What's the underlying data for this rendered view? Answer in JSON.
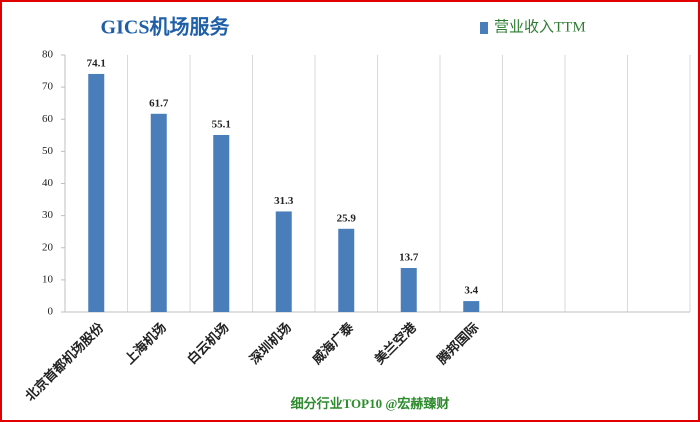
{
  "chart_data": {
    "type": "bar",
    "title": "GICS机场服务",
    "footer": "细分行业TOP10 @宏赫臻财",
    "categories": [
      "北京首都机场股份",
      "上海机场",
      "白云机场",
      "深圳机场",
      "威海广泰",
      "美兰空港",
      "腾邦国际",
      null,
      null,
      null
    ],
    "series": [
      {
        "name": "营业收入TTM",
        "color": "#4a7ebb",
        "values": [
          74.1,
          61.7,
          55.1,
          31.3,
          25.9,
          13.7,
          3.4,
          null,
          null,
          null
        ]
      }
    ],
    "ylim": [
      0,
      80
    ],
    "yticks": [
      0,
      10,
      20,
      30,
      40,
      50,
      60,
      70,
      80
    ],
    "grid": true,
    "legend": "top-right"
  }
}
